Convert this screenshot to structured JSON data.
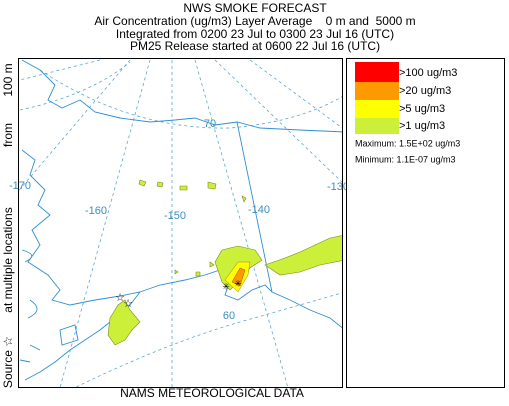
{
  "header": {
    "title": "NWS SMOKE FORECAST",
    "line1": "Air Concentration (ug/m3) Layer Average    0 m and  5000 m",
    "line2": "Integrated from 0200 23 Jul to 0300 23 Jul 16 (UTC)",
    "line3": "PM25 Release started at 0600 22 Jul 16 (UTC)"
  },
  "side_label": {
    "source": "Source ☆",
    "locations": "at multiple locations",
    "from": "from",
    "height": "100 m"
  },
  "footer": "NAMS METEOROLOGICAL DATA",
  "map_labels": {
    "lat70": "70",
    "lat60": "60",
    "lon170": "-170",
    "lon160": "-160",
    "lon150": "-150",
    "lon140": "-140",
    "lon130": "-130"
  },
  "legend": {
    "items": [
      ">100 ug/m3",
      ">20 ug/m3",
      ">5 ug/m3",
      ">1 ug/m3"
    ],
    "maximum": "Maximum: 1.5E+02 ug/m3",
    "minimum": "Minimum: 1.1E-07 ug/m3"
  }
}
